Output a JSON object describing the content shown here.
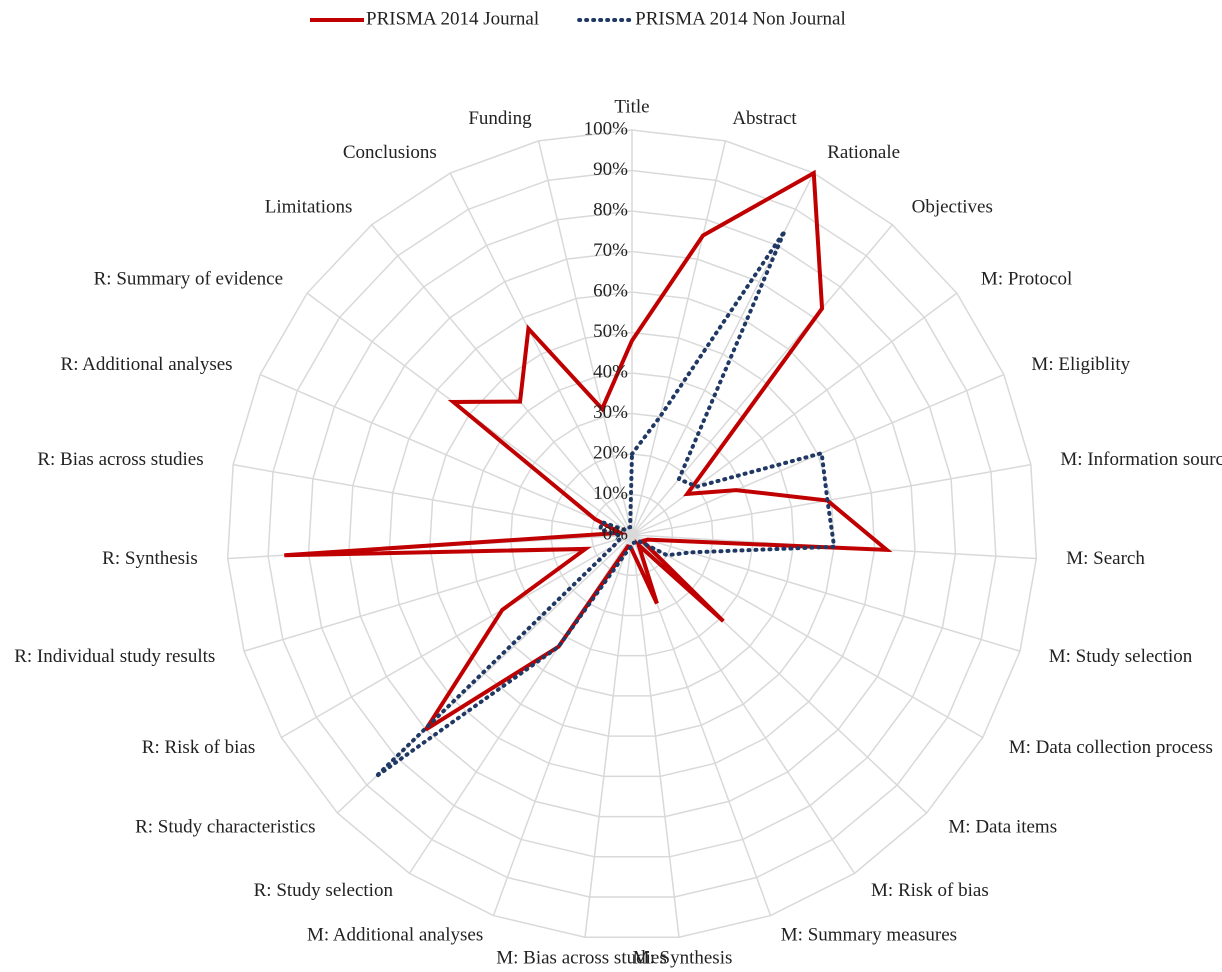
{
  "chart_data": {
    "type": "radar",
    "categories": [
      "Title",
      "Abstract",
      "Rationale",
      "Objectives",
      "M: Protocol",
      "M: Eligiblity",
      "M: Information sources",
      "M: Search",
      "M: Study selection",
      "M: Data collection process",
      "M: Data items",
      "M: Risk of bias",
      "M: Summary measures",
      "M: Synthesis",
      "M: Bias across studies",
      "M: Additional analyses",
      "R: Study selection",
      "R: Study characteristics",
      "R: Risk of bias",
      "R: Individual study results",
      "R: Synthesis",
      "R: Bias across studies",
      "R: Additional analyses",
      "R: Summary of evidence",
      "Limitations",
      "Conclusions",
      "Funding"
    ],
    "series": [
      {
        "name": "PRISMA 2014 Journal",
        "color": "#c00000",
        "values": [
          48,
          76,
          100,
          73,
          17,
          28,
          49,
          63,
          4,
          3,
          31,
          3,
          18,
          5,
          3,
          3,
          33,
          70,
          37,
          12,
          86,
          3,
          10,
          55,
          43,
          57,
          32
        ]
      },
      {
        "name": "PRISMA 2014 Non Journal",
        "color": "#1f3864",
        "values": [
          20,
          30,
          84,
          18,
          20,
          51,
          49,
          50,
          15,
          10,
          2,
          2,
          2,
          2,
          3,
          5,
          33,
          87,
          5,
          3,
          3,
          8,
          8,
          2,
          2,
          2,
          2
        ]
      }
    ],
    "ylim": [
      0,
      100
    ],
    "yticks": [
      {
        "value": 0,
        "label": "0%"
      },
      {
        "value": 10,
        "label": "10%"
      },
      {
        "value": 20,
        "label": "20%"
      },
      {
        "value": 30,
        "label": "30%"
      },
      {
        "value": 40,
        "label": "40%"
      },
      {
        "value": 50,
        "label": "50%"
      },
      {
        "value": 60,
        "label": "60%"
      },
      {
        "value": 70,
        "label": "70%"
      },
      {
        "value": 80,
        "label": "80%"
      },
      {
        "value": 90,
        "label": "90%"
      },
      {
        "value": 100,
        "label": "100%"
      }
    ],
    "grid": true,
    "legend": "top"
  }
}
